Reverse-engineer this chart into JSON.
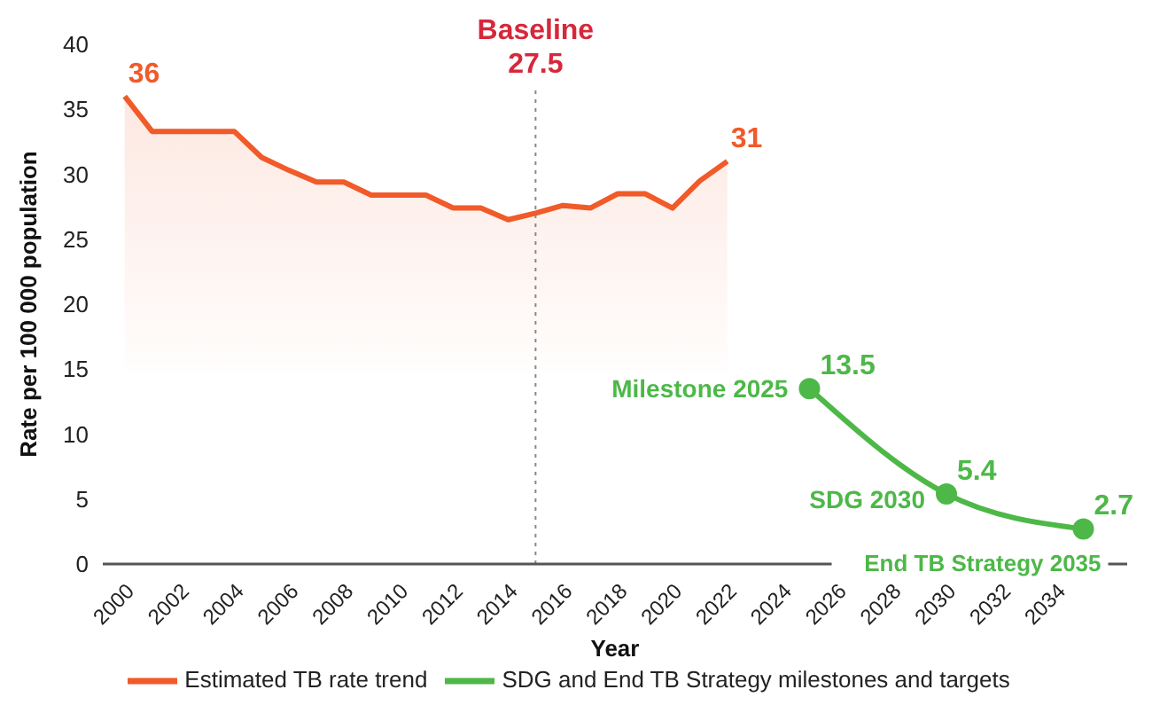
{
  "chart_data": {
    "type": "line",
    "xlabel": "Year",
    "ylabel": "Rate per 100 000 population",
    "xlim": [
      1999.2,
      2036.6
    ],
    "xticks": [
      2000,
      2002,
      2004,
      2006,
      2008,
      2010,
      2012,
      2014,
      2016,
      2018,
      2020,
      2022,
      2024,
      2026,
      2028,
      2030,
      2032,
      2034
    ],
    "ylim": [
      0,
      40
    ],
    "yticks": [
      0,
      5,
      10,
      15,
      20,
      25,
      30,
      35,
      40
    ],
    "grid": false,
    "legend": "bottom",
    "series": [
      {
        "name": "Estimated TB rate trend",
        "type": "area",
        "color": "#f15a29",
        "marker": "none",
        "x": [
          2000,
          2001,
          2002,
          2003,
          2004,
          2005,
          2006,
          2007,
          2008,
          2009,
          2010,
          2011,
          2012,
          2013,
          2014,
          2015,
          2016,
          2017,
          2018,
          2019,
          2020,
          2021,
          2022
        ],
        "values": [
          36,
          33.3,
          33.3,
          33.3,
          33.3,
          31.3,
          30.3,
          29.4,
          29.4,
          28.4,
          28.4,
          28.4,
          27.4,
          27.4,
          26.5,
          27,
          27.6,
          27.4,
          28.5,
          28.5,
          27.4,
          29.5,
          31
        ],
        "value_labels": [
          "36",
          null,
          null,
          null,
          null,
          null,
          null,
          null,
          null,
          null,
          null,
          null,
          null,
          null,
          null,
          null,
          null,
          null,
          null,
          null,
          null,
          null,
          "31"
        ]
      },
      {
        "name": "SDG and End TB Strategy milestones and targets",
        "color": "#4db848",
        "marker": "circle",
        "x": [
          2025,
          2030,
          2035
        ],
        "values": [
          13.5,
          5.4,
          2.7
        ],
        "value_labels": [
          "13.5",
          "5.4",
          "2.7"
        ]
      }
    ],
    "ref_lines": [
      {
        "axis": "x",
        "value": 2015,
        "label": "Baseline\n27.5",
        "color": "#888888",
        "line_style": "dotted"
      }
    ],
    "annotations": [
      {
        "text": "Milestone 2025",
        "x": 2025,
        "y": 13.5
      },
      {
        "text": "SDG 2030",
        "x": 2030,
        "y": 5.4
      },
      {
        "text": "End TB Strategy 2035",
        "x": 2035,
        "y": 2.7
      }
    ]
  }
}
